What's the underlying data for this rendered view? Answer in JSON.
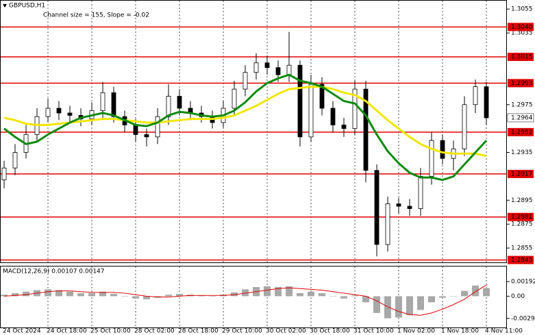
{
  "chart_data": [
    {
      "type": "candlestick",
      "title": "GBPUSD,H1",
      "subtitle": "Channel size = 155, Slope = -0.02",
      "categories": [
        "24 Oct 2024",
        null,
        null,
        null,
        "24 Oct 18:00",
        null,
        null,
        null,
        "25 Oct 10:00",
        null,
        null,
        null,
        "28 Oct 02:00",
        null,
        null,
        null,
        "28 Oct 18:00",
        null,
        null,
        null,
        "29 Oct 10:00",
        null,
        null,
        null,
        "30 Oct 02:00",
        null,
        null,
        null,
        "30 Oct 18:00",
        null,
        null,
        null,
        "31 Oct 10:00",
        null,
        null,
        null,
        "1 Nov 02:00",
        null,
        null,
        null,
        "1 Nov 18:00",
        null,
        null,
        null,
        "4 Nov 11:00"
      ],
      "open": [
        1.2912,
        1.2922,
        1.2935,
        1.295,
        1.2965,
        1.2972,
        1.2968,
        1.2966,
        1.2963,
        1.297,
        1.2985,
        1.2965,
        1.2958,
        1.295,
        1.2948,
        1.2965,
        1.2982,
        1.2972,
        1.2968,
        1.2965,
        1.296,
        1.2972,
        1.2988,
        1.3002,
        1.301,
        1.3006,
        1.3,
        1.3008,
        1.2948,
        1.2992,
        1.2972,
        1.2958,
        1.2955,
        1.2988,
        1.292,
        1.2858,
        1.2892,
        1.289,
        1.2888,
        1.2915,
        1.2945,
        1.293,
        1.2938,
        1.2975,
        1.299
      ],
      "high": [
        1.2928,
        1.2942,
        1.2958,
        1.2972,
        1.298,
        1.2978,
        1.2974,
        1.2972,
        1.2977,
        1.2994,
        1.299,
        1.297,
        1.2963,
        1.2955,
        1.2972,
        1.2992,
        1.2988,
        1.2978,
        1.2974,
        1.297,
        1.2978,
        1.2995,
        1.3008,
        1.3018,
        1.3016,
        1.3012,
        1.3036,
        1.3012,
        1.3,
        1.2998,
        1.2978,
        1.2964,
        1.2995,
        1.2995,
        1.2925,
        1.2898,
        1.2897,
        1.2896,
        1.2922,
        1.2952,
        1.295,
        1.2945,
        1.2982,
        1.2996,
        1.2994
      ],
      "low": [
        1.2905,
        1.2916,
        1.293,
        1.2944,
        1.296,
        1.2962,
        1.296,
        1.2957,
        1.2958,
        1.2964,
        1.296,
        1.2952,
        1.2944,
        1.294,
        1.2942,
        1.2958,
        1.2966,
        1.2962,
        1.296,
        1.2955,
        1.2956,
        1.2966,
        1.2982,
        1.2996,
        1.3,
        1.2994,
        1.2994,
        1.294,
        1.2944,
        1.2966,
        1.2952,
        1.2948,
        1.295,
        1.291,
        1.2848,
        1.2852,
        1.2884,
        1.2882,
        1.2882,
        1.2908,
        1.2925,
        1.292,
        1.2932,
        1.2968,
        1.2958
      ],
      "close": [
        1.2922,
        1.2935,
        1.295,
        1.2965,
        1.2972,
        1.2968,
        1.2966,
        1.2963,
        1.297,
        1.2985,
        1.2965,
        1.2958,
        1.295,
        1.2948,
        1.2965,
        1.2982,
        1.2972,
        1.2968,
        1.2965,
        1.296,
        1.2972,
        1.2988,
        1.3002,
        1.301,
        1.3006,
        1.3,
        1.3008,
        1.2948,
        1.2992,
        1.2972,
        1.2958,
        1.2955,
        1.2988,
        1.292,
        1.2858,
        1.2892,
        1.289,
        1.2888,
        1.2915,
        1.2945,
        1.293,
        1.2938,
        1.2975,
        1.299,
        1.2964
      ],
      "ma_fast": {
        "color": "#0a8a0a",
        "values": [
          1.2955,
          1.2948,
          1.2942,
          1.2944,
          1.295,
          1.2955,
          1.296,
          1.2964,
          1.2966,
          1.2968,
          1.2966,
          1.2962,
          1.2958,
          1.2957,
          1.296,
          1.2966,
          1.2969,
          1.2968,
          1.2966,
          1.2965,
          1.2966,
          1.297,
          1.2977,
          1.2986,
          1.2993,
          1.2997,
          1.3,
          1.2995,
          1.2993,
          1.299,
          1.2984,
          1.2978,
          1.2976,
          1.2966,
          1.295,
          1.2936,
          1.2926,
          1.2918,
          1.2914,
          1.2914,
          1.2912,
          1.2915,
          1.2925,
          1.2935,
          1.2945
        ]
      },
      "ma_slow": {
        "color": "#f2e600",
        "values": [
          1.2964,
          1.2962,
          1.2959,
          1.2958,
          1.2958,
          1.2959,
          1.296,
          1.2961,
          1.2962,
          1.2963,
          1.2963,
          1.2962,
          1.2961,
          1.296,
          1.296,
          1.2961,
          1.2962,
          1.2963,
          1.2963,
          1.2963,
          1.2964,
          1.2966,
          1.297,
          1.2974,
          1.2979,
          1.2984,
          1.2988,
          1.2989,
          1.299,
          1.299,
          1.2988,
          1.2985,
          1.2983,
          1.2978,
          1.297,
          1.2962,
          1.2955,
          1.2948,
          1.2942,
          1.2938,
          1.2935,
          1.2934,
          1.2934,
          1.2934,
          1.2932
        ]
      },
      "ylim": [
        1.2843,
        1.3062
      ],
      "yticks": [
        1.3055,
        1.3035,
        1.2975,
        1.2935,
        1.2895,
        1.2875,
        1.2855
      ],
      "levels": [
        {
          "value": 1.304,
          "label": "1.3040"
        },
        1.3015,
        1.2993,
        1.2952,
        1.2917,
        1.2881,
        1.2845
      ],
      "level_color": "#e00000",
      "last_price": 1.2964
    },
    {
      "type": "macd",
      "title": "MACD(12,26,9) 0.00107 0.00147",
      "values": [
        0.0002,
        0.0004,
        0.0006,
        0.0008,
        0.0009,
        0.0008,
        0.0006,
        0.0004,
        0.0004,
        0.0006,
        0.0003,
        0.0,
        -0.0003,
        -0.0004,
        -0.0002,
        0.0002,
        0.0003,
        0.0002,
        0.0001,
        0.0,
        0.0002,
        0.0005,
        0.0009,
        0.0012,
        0.0013,
        0.0012,
        0.0013,
        0.0004,
        0.0006,
        0.0004,
        0.0,
        -0.0003,
        0.0001,
        -0.0008,
        -0.0022,
        -0.0029,
        -0.0028,
        -0.0025,
        -0.0018,
        -0.0008,
        -0.0002,
        0.0,
        0.0007,
        0.0014,
        0.00107
      ],
      "color": "#a8a8a8",
      "signal": {
        "color": "#e00000",
        "values": [
          0.0,
          0.0001,
          0.0002,
          0.0004,
          0.0006,
          0.0007,
          0.0007,
          0.0006,
          0.0005,
          0.0005,
          0.0005,
          0.0004,
          0.0002,
          0.0,
          -0.0001,
          -0.0001,
          0.0,
          0.0001,
          0.0001,
          0.0001,
          0.0001,
          0.0002,
          0.0004,
          0.0006,
          0.0008,
          0.001,
          0.0011,
          0.001,
          0.0009,
          0.0008,
          0.0006,
          0.0004,
          0.0002,
          0.0,
          -0.0006,
          -0.0014,
          -0.002,
          -0.0024,
          -0.0025,
          -0.0022,
          -0.0017,
          -0.0011,
          -0.0004,
          0.0006,
          0.00147
        ]
      },
      "ylim": [
        -0.0041,
        0.0039
      ],
      "yticks": [
        0.00192,
        {
          "value": 0,
          "label": "0.00"
        },
        -0.00291
      ]
    }
  ]
}
